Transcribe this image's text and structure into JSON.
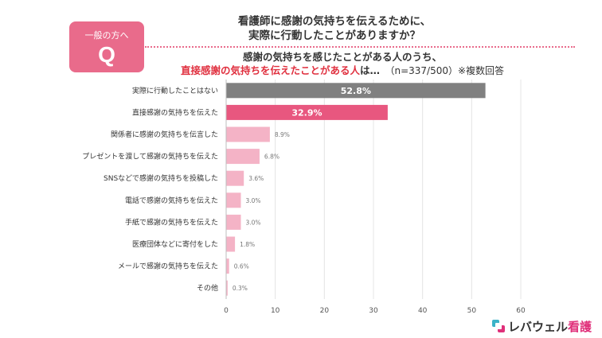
{
  "question_box": {
    "audience": "一般の方へ",
    "letter": "Q"
  },
  "title": {
    "line1": "看護師に感謝の気持ちを伝えるために、",
    "line2": "実際に行動したことがありますか？"
  },
  "subtitle": {
    "line1": "感謝の気持ちを感じたことがある人のうち、",
    "highlight": "直接感謝の気持ちを伝えたことがある人",
    "suffix": "は…",
    "note": "（n=337/500）※複数回答"
  },
  "colors": {
    "gray": "#808080",
    "pink_strong": "#e8577f",
    "pink_light": "#f4b3c6",
    "accent": "#e96b8b"
  },
  "chart_data": {
    "type": "bar",
    "orientation": "horizontal",
    "xlim": [
      0,
      60
    ],
    "xticks": [
      0,
      10,
      20,
      30,
      40,
      50,
      60
    ],
    "grid": true,
    "categories": [
      "実際に行動したことはない",
      "直接感謝の気持ちを伝えた",
      "関係者に感謝の気持ちを伝言した",
      "プレゼントを渡して感謝の気持ちを伝えた",
      "SNSなどで感謝の気持ちを投稿した",
      "電話で感謝の気持ちを伝えた",
      "手紙で感謝の気持ちを伝えた",
      "医療団体などに寄付をした",
      "メールで感謝の気持ちを伝えた",
      "その他"
    ],
    "values": [
      52.8,
      32.9,
      8.9,
      6.8,
      3.6,
      3.0,
      3.0,
      1.8,
      0.6,
      0.3
    ],
    "labels": [
      "52.8%",
      "32.9%",
      "8.9%",
      "6.8%",
      "3.6%",
      "3.0%",
      "3.0%",
      "1.8%",
      "0.6%",
      "0.3%"
    ],
    "bar_colors": [
      "gray",
      "pink_strong",
      "pink_light",
      "pink_light",
      "pink_light",
      "pink_light",
      "pink_light",
      "pink_light",
      "pink_light",
      "pink_light"
    ],
    "label_styles": [
      "inside",
      "inside",
      "outside",
      "outside",
      "outside",
      "outside",
      "outside",
      "outside",
      "outside",
      "outside"
    ]
  },
  "logo": {
    "text_main": "レバウェル",
    "text_accent": "看護"
  }
}
